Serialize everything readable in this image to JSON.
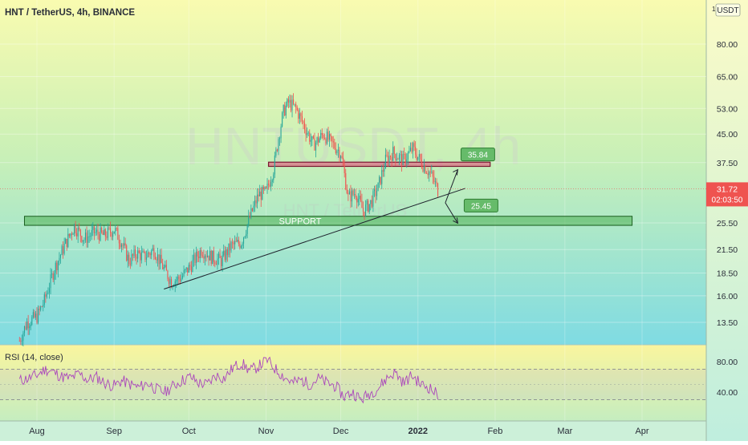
{
  "header": {
    "symbol_title": "HNT / TetherUS, 4h, BINANCE",
    "watermark": "HNTUSDT, 4h",
    "watermark_sub": "HNT / TetherUS",
    "currency_badge_num": "1",
    "currency_badge": "USDT"
  },
  "price_axis": {
    "ticks": [
      {
        "value": 80.0,
        "label": "80.00"
      },
      {
        "value": 65.0,
        "label": "65.00"
      },
      {
        "value": 53.0,
        "label": "53.00"
      },
      {
        "value": 45.0,
        "label": "45.00"
      },
      {
        "value": 37.5,
        "label": "37.50"
      },
      {
        "value": 25.5,
        "label": "25.50"
      },
      {
        "value": 21.5,
        "label": "21.50"
      },
      {
        "value": 18.5,
        "label": "18.50"
      },
      {
        "value": 16.0,
        "label": "16.00"
      },
      {
        "value": 13.5,
        "label": "13.50"
      }
    ],
    "current_price": "31.72",
    "countdown": "02:03:50"
  },
  "rsi_panel": {
    "title": "RSI (14, close)",
    "ticks": [
      {
        "value": 80,
        "label": "80.00"
      },
      {
        "value": 40,
        "label": "40.00"
      }
    ]
  },
  "time_axis": {
    "labels": [
      "Aug",
      "Sep",
      "Oct",
      "Nov",
      "Dec",
      "2022",
      "Feb",
      "Mar",
      "Apr"
    ]
  },
  "annotations": {
    "support_label": "SUPPORT",
    "target_up": "35.84",
    "target_down": "25.45"
  },
  "colors": {
    "up_candle": "#26a69a",
    "down_candle": "#ef5350",
    "rsi_line": "#ab47bc",
    "support_zone": "#4caf50",
    "resistance_zone": "#e91e63",
    "target_label": "#66bb6a"
  },
  "chart_data": {
    "type": "candlestick",
    "y_scale": "log",
    "x": [
      "Aug",
      "Sep",
      "Oct",
      "Nov",
      "Dec",
      "2022",
      "Feb",
      "Mar",
      "Apr"
    ],
    "close_path": [
      [
        "2021-07-25",
        12.0
      ],
      [
        "2021-07-28",
        13.5
      ],
      [
        "2021-08-01",
        14.0
      ],
      [
        "2021-08-04",
        15.5
      ],
      [
        "2021-08-08",
        19.0
      ],
      [
        "2021-08-12",
        22.0
      ],
      [
        "2021-08-16",
        25.0
      ],
      [
        "2021-08-20",
        23.0
      ],
      [
        "2021-08-24",
        24.0
      ],
      [
        "2021-08-28",
        23.5
      ],
      [
        "2021-09-01",
        24.5
      ],
      [
        "2021-09-04",
        22.5
      ],
      [
        "2021-09-07",
        20.0
      ],
      [
        "2021-09-10",
        21.0
      ],
      [
        "2021-09-13",
        20.5
      ],
      [
        "2021-09-17",
        21.5
      ],
      [
        "2021-09-21",
        19.0
      ],
      [
        "2021-09-24",
        17.5
      ],
      [
        "2021-09-28",
        18.0
      ],
      [
        "2021-10-02",
        19.5
      ],
      [
        "2021-10-06",
        21.5
      ],
      [
        "2021-10-10",
        20.5
      ],
      [
        "2021-10-14",
        20.0
      ],
      [
        "2021-10-18",
        22.0
      ],
      [
        "2021-10-22",
        22.5
      ],
      [
        "2021-10-26",
        27.0
      ],
      [
        "2021-10-29",
        30.5
      ],
      [
        "2021-11-01",
        31.0
      ],
      [
        "2021-11-04",
        36.0
      ],
      [
        "2021-11-06",
        44.0
      ],
      [
        "2021-11-08",
        52.0
      ],
      [
        "2021-11-10",
        55.0
      ],
      [
        "2021-11-13",
        53.0
      ],
      [
        "2021-11-16",
        48.0
      ],
      [
        "2021-11-20",
        42.0
      ],
      [
        "2021-11-24",
        45.0
      ],
      [
        "2021-11-28",
        42.0
      ],
      [
        "2021-12-01",
        40.0
      ],
      [
        "2021-12-04",
        30.0
      ],
      [
        "2021-12-07",
        31.0
      ],
      [
        "2021-12-10",
        27.5
      ],
      [
        "2021-12-13",
        29.0
      ],
      [
        "2021-12-16",
        32.0
      ],
      [
        "2021-12-19",
        38.0
      ],
      [
        "2021-12-22",
        40.0
      ],
      [
        "2021-12-26",
        38.0
      ],
      [
        "2021-12-30",
        41.0
      ],
      [
        "2022-01-03",
        37.0
      ],
      [
        "2022-01-06",
        35.0
      ],
      [
        "2022-01-09",
        31.5
      ]
    ],
    "horizontal_zones": [
      {
        "name": "SUPPORT",
        "low": 25.1,
        "high": 26.6,
        "from": "2021-07-27",
        "to": "2022-03-28"
      },
      {
        "name": "resistance",
        "low": 36.6,
        "high": 37.6,
        "from": "2021-11-02",
        "to": "2022-01-30"
      }
    ],
    "trendline": {
      "from": [
        "2021-09-21",
        16.7
      ],
      "to": [
        "2022-01-20",
        31.8
      ]
    },
    "projection": {
      "up": {
        "from": [
          "2022-01-12",
          29.0
        ],
        "to": [
          "2022-01-17",
          35.84
        ]
      },
      "down": {
        "from": [
          "2022-01-12",
          29.0
        ],
        "to": [
          "2022-01-17",
          25.45
        ]
      }
    },
    "rsi": {
      "levels": [
        70,
        30
      ],
      "samples": [
        55,
        58,
        62,
        70,
        66,
        60,
        58,
        64,
        56,
        60,
        52,
        48,
        55,
        50,
        46,
        52,
        44,
        40,
        48,
        55,
        60,
        52,
        50,
        62,
        58,
        72,
        78,
        68,
        74,
        82,
        70,
        60,
        52,
        56,
        50,
        58,
        52,
        48,
        34,
        40,
        30,
        38,
        45,
        58,
        66,
        52,
        62,
        50,
        46,
        36
      ]
    }
  }
}
